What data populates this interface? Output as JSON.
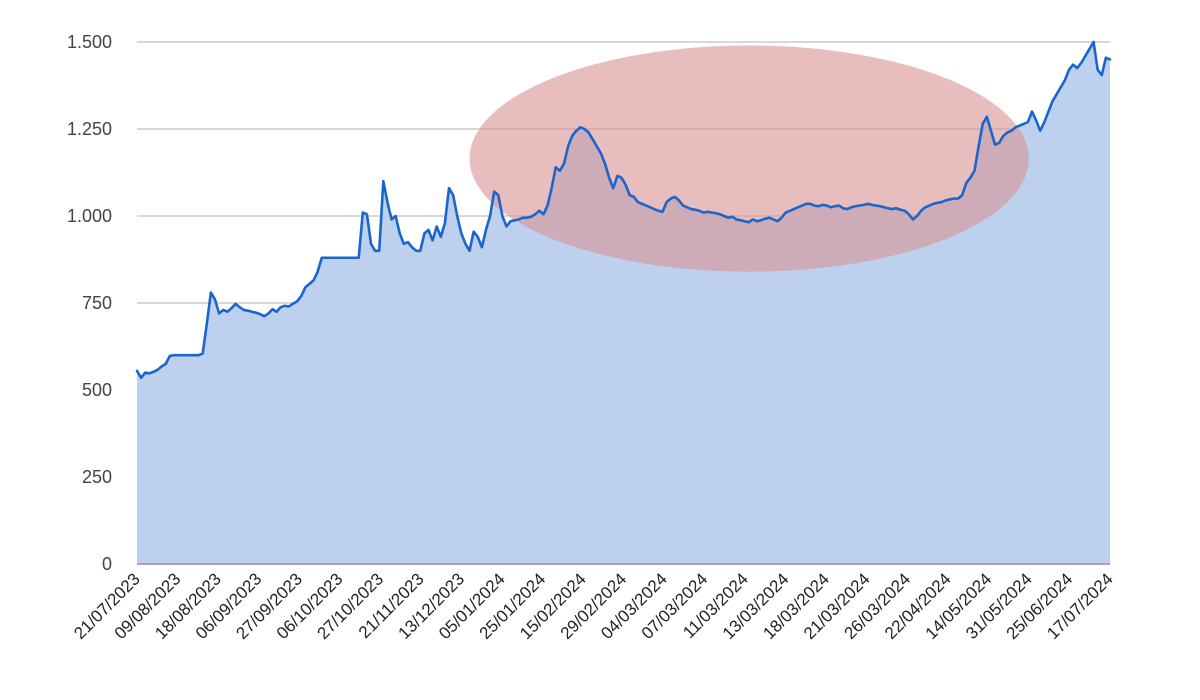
{
  "chart_data": {
    "type": "area",
    "title": "",
    "xlabel": "",
    "ylabel": "",
    "ylim": [
      0,
      1500
    ],
    "y_ticks": [
      0,
      250,
      500,
      750,
      1000,
      1250,
      1500
    ],
    "y_tick_labels": [
      "0",
      "250",
      "500",
      "750",
      "1.000",
      "1.250",
      "1.500"
    ],
    "grid": true,
    "legend": "none",
    "x_tick_labels": [
      "21/07/2023",
      "09/08/2023",
      "18/08/2023",
      "06/09/2023",
      "27/09/2023",
      "06/10/2023",
      "27/10/2023",
      "21/11/2023",
      "13/12/2023",
      "05/01/2024",
      "25/01/2024",
      "15/02/2024",
      "29/02/2024",
      "04/03/2024",
      "07/03/2024",
      "11/03/2024",
      "13/03/2024",
      "18/03/2024",
      "21/03/2024",
      "26/03/2024",
      "22/04/2024",
      "14/05/2024",
      "31/05/2024",
      "25/06/2024",
      "17/07/2024"
    ],
    "colors": {
      "line": "#1a66cc",
      "fill": "#bdd1ef",
      "highlight_fill": "#d99594",
      "gridline": "#cccccc"
    },
    "highlight": {
      "shape": "ellipse",
      "description_x_range_tick_index": [
        8.2,
        22.0
      ],
      "y_range": [
        840,
        1490
      ]
    },
    "series": [
      {
        "values": [
          555,
          535,
          550,
          548,
          552,
          558,
          568,
          575,
          598,
          600,
          600,
          600,
          600,
          600,
          600,
          600,
          605,
          690,
          780,
          760,
          720,
          730,
          725,
          735,
          748,
          738,
          730,
          728,
          725,
          722,
          718,
          712,
          720,
          732,
          725,
          738,
          742,
          740,
          748,
          755,
          770,
          795,
          805,
          815,
          840,
          880,
          880,
          880,
          880,
          880,
          880,
          880,
          880,
          880,
          880,
          1010,
          1005,
          920,
          900,
          900,
          1100,
          1040,
          990,
          1000,
          950,
          920,
          925,
          910,
          900,
          900,
          950,
          960,
          930,
          970,
          940,
          980,
          1080,
          1060,
          1000,
          950,
          920,
          900,
          955,
          940,
          910,
          960,
          1000,
          1070,
          1060,
          1000,
          970,
          985,
          988,
          990,
          995,
          995,
          998,
          1005,
          1015,
          1005,
          1030,
          1080,
          1140,
          1130,
          1150,
          1200,
          1230,
          1245,
          1255,
          1250,
          1240,
          1220,
          1200,
          1180,
          1150,
          1110,
          1080,
          1115,
          1110,
          1090,
          1060,
          1055,
          1040,
          1035,
          1030,
          1025,
          1020,
          1015,
          1012,
          1040,
          1050,
          1055,
          1045,
          1030,
          1025,
          1020,
          1018,
          1015,
          1010,
          1012,
          1010,
          1008,
          1005,
          1000,
          995,
          998,
          990,
          988,
          985,
          982,
          990,
          985,
          988,
          992,
          995,
          990,
          985,
          995,
          1010,
          1015,
          1020,
          1025,
          1030,
          1035,
          1035,
          1030,
          1028,
          1032,
          1030,
          1025,
          1028,
          1030,
          1022,
          1020,
          1025,
          1028,
          1030,
          1032,
          1035,
          1032,
          1030,
          1028,
          1025,
          1022,
          1020,
          1022,
          1018,
          1015,
          1005,
          990,
          1000,
          1015,
          1025,
          1030,
          1035,
          1038,
          1040,
          1045,
          1048,
          1050,
          1050,
          1060,
          1095,
          1110,
          1130,
          1200,
          1265,
          1285,
          1245,
          1205,
          1210,
          1230,
          1240,
          1245,
          1255,
          1260,
          1265,
          1270,
          1300,
          1275,
          1245,
          1270,
          1300,
          1330,
          1350,
          1370,
          1390,
          1420,
          1435,
          1425,
          1440,
          1460,
          1480,
          1500,
          1420,
          1405,
          1455,
          1450
        ]
      }
    ]
  }
}
